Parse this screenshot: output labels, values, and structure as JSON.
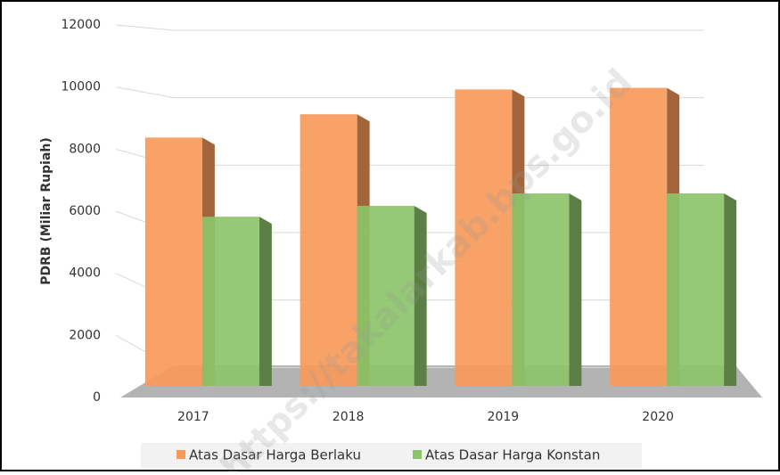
{
  "chart_data": {
    "type": "bar",
    "y_axis_label": "PDRB (Miliar Rupiah)",
    "watermark": "https://takalarkab.bps.go.id",
    "categories": [
      "2017",
      "2018",
      "2019",
      "2020"
    ],
    "series": [
      {
        "name": "Atas Dasar Harga Berlaku",
        "color": "#f79a5a",
        "values": [
          8000,
          8750,
          9550,
          9600
        ]
      },
      {
        "name": "Atas Dasar Harga Konstan",
        "color": "#8cc46a",
        "values": [
          5450,
          5800,
          6200,
          6200
        ]
      }
    ],
    "ylim": [
      0,
      12000
    ],
    "yticks": [
      0,
      2000,
      4000,
      6000,
      8000,
      10000,
      12000
    ],
    "grid": true
  }
}
